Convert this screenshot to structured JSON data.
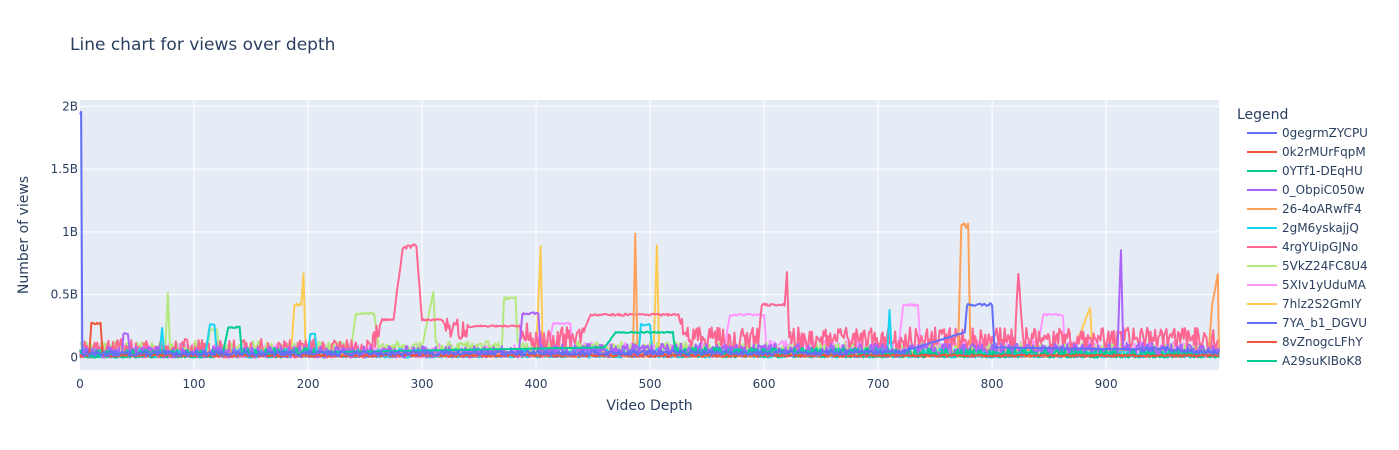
{
  "chart_data": {
    "type": "line",
    "title": "Line chart for views over depth",
    "xlabel": "Video Depth",
    "ylabel": "Number of views",
    "xlim": [
      0,
      999
    ],
    "ylim": [
      -100000000,
      2050000000
    ],
    "x_ticks": [
      0,
      100,
      200,
      300,
      400,
      500,
      600,
      700,
      800,
      900
    ],
    "x_tick_labels": [
      "0",
      "100",
      "200",
      "300",
      "400",
      "500",
      "600",
      "700",
      "800",
      "900"
    ],
    "y_ticks": [
      0,
      500000000,
      1000000000,
      1500000000,
      2000000000
    ],
    "y_tick_labels": [
      "0",
      "0.5B",
      "1B",
      "1.5B",
      "2B"
    ],
    "grid": true,
    "legend_title": "Legend",
    "legend_position": "right",
    "series": [
      {
        "name": "0gegrmZYCPU",
        "color": "#636efa",
        "baseline": 40000000,
        "noise": 20000000,
        "points": [
          [
            0,
            1960000000
          ],
          [
            1,
            1960000000
          ],
          [
            2,
            30000000
          ],
          [
            720,
            40000000
          ],
          [
            776,
            200000000
          ],
          [
            778,
            420000000
          ],
          [
            800,
            420000000
          ],
          [
            802,
            80000000
          ],
          [
            960,
            60000000
          ],
          [
            999,
            40000000
          ]
        ]
      },
      {
        "name": "0k2rMUrFqpM",
        "color": "#EF553B",
        "baseline": 15000000,
        "noise": 8000000,
        "points": [
          [
            0,
            15000000
          ],
          [
            8,
            20000000
          ],
          [
            10,
            270000000
          ],
          [
            18,
            270000000
          ],
          [
            20,
            15000000
          ],
          [
            999,
            15000000
          ]
        ]
      },
      {
        "name": "0YTf1-DEqHU",
        "color": "#00cc96",
        "baseline": 25000000,
        "noise": 40000000,
        "points": [
          [
            0,
            20000000
          ],
          [
            125,
            20000000
          ],
          [
            130,
            240000000
          ],
          [
            140,
            240000000
          ],
          [
            142,
            30000000
          ],
          [
            460,
            80000000
          ],
          [
            470,
            200000000
          ],
          [
            520,
            200000000
          ],
          [
            522,
            40000000
          ],
          [
            999,
            20000000
          ]
        ]
      },
      {
        "name": "0_ObpiC050w",
        "color": "#ab63fa",
        "baseline": 60000000,
        "noise": 50000000,
        "points": [
          [
            0,
            40000000
          ],
          [
            37,
            40000000
          ],
          [
            38,
            190000000
          ],
          [
            42,
            190000000
          ],
          [
            44,
            40000000
          ],
          [
            385,
            40000000
          ],
          [
            388,
            350000000
          ],
          [
            402,
            350000000
          ],
          [
            404,
            60000000
          ],
          [
            910,
            60000000
          ],
          [
            913,
            860000000
          ],
          [
            915,
            80000000
          ],
          [
            999,
            40000000
          ]
        ]
      },
      {
        "name": "26-4oARwfF4",
        "color": "#FFA15A",
        "baseline": 30000000,
        "noise": 20000000,
        "points": [
          [
            0,
            30000000
          ],
          [
            485,
            30000000
          ],
          [
            487,
            990000000
          ],
          [
            489,
            30000000
          ],
          [
            770,
            30000000
          ],
          [
            773,
            1050000000
          ],
          [
            779,
            1050000000
          ],
          [
            781,
            60000000
          ],
          [
            990,
            60000000
          ],
          [
            993,
            420000000
          ],
          [
            998,
            680000000
          ],
          [
            999,
            40000000
          ]
        ]
      },
      {
        "name": "2gM6yskajjQ",
        "color": "#19d3f3",
        "baseline": 40000000,
        "noise": 40000000,
        "points": [
          [
            0,
            30000000
          ],
          [
            70,
            30000000
          ],
          [
            72,
            240000000
          ],
          [
            74,
            30000000
          ],
          [
            110,
            30000000
          ],
          [
            114,
            260000000
          ],
          [
            118,
            260000000
          ],
          [
            120,
            30000000
          ],
          [
            200,
            30000000
          ],
          [
            202,
            190000000
          ],
          [
            206,
            190000000
          ],
          [
            208,
            30000000
          ],
          [
            490,
            30000000
          ],
          [
            492,
            260000000
          ],
          [
            500,
            260000000
          ],
          [
            502,
            30000000
          ],
          [
            708,
            30000000
          ],
          [
            710,
            380000000
          ],
          [
            712,
            30000000
          ],
          [
            999,
            30000000
          ]
        ]
      },
      {
        "name": "4rgYUipGJNo",
        "color": "#FF6692",
        "baseline": 150000000,
        "noise": 90000000,
        "points": [
          [
            0,
            60000000
          ],
          [
            255,
            60000000
          ],
          [
            265,
            300000000
          ],
          [
            275,
            300000000
          ],
          [
            283,
            880000000
          ],
          [
            295,
            880000000
          ],
          [
            300,
            300000000
          ],
          [
            318,
            300000000
          ],
          [
            322,
            220000000
          ],
          [
            350,
            250000000
          ],
          [
            385,
            250000000
          ],
          [
            400,
            120000000
          ],
          [
            440,
            180000000
          ],
          [
            448,
            340000000
          ],
          [
            525,
            340000000
          ],
          [
            530,
            150000000
          ],
          [
            595,
            150000000
          ],
          [
            598,
            420000000
          ],
          [
            618,
            420000000
          ],
          [
            620,
            680000000
          ],
          [
            622,
            150000000
          ],
          [
            820,
            150000000
          ],
          [
            823,
            680000000
          ],
          [
            827,
            150000000
          ],
          [
            999,
            150000000
          ]
        ]
      },
      {
        "name": "5VkZ24FC8U4",
        "color": "#B6E880",
        "baseline": 60000000,
        "noise": 50000000,
        "points": [
          [
            0,
            80000000
          ],
          [
            75,
            80000000
          ],
          [
            77,
            520000000
          ],
          [
            79,
            80000000
          ],
          [
            112,
            80000000
          ],
          [
            114,
            220000000
          ],
          [
            120,
            220000000
          ],
          [
            122,
            80000000
          ],
          [
            238,
            80000000
          ],
          [
            242,
            350000000
          ],
          [
            258,
            350000000
          ],
          [
            262,
            80000000
          ],
          [
            300,
            80000000
          ],
          [
            310,
            530000000
          ],
          [
            312,
            80000000
          ],
          [
            370,
            80000000
          ],
          [
            372,
            470000000
          ],
          [
            382,
            470000000
          ],
          [
            384,
            80000000
          ],
          [
            999,
            60000000
          ]
        ]
      },
      {
        "name": "5XIv1yUduMA",
        "color": "#FF97FF",
        "baseline": 60000000,
        "noise": 60000000,
        "points": [
          [
            0,
            50000000
          ],
          [
            410,
            50000000
          ],
          [
            415,
            270000000
          ],
          [
            430,
            270000000
          ],
          [
            432,
            60000000
          ],
          [
            565,
            60000000
          ],
          [
            570,
            340000000
          ],
          [
            600,
            340000000
          ],
          [
            602,
            80000000
          ],
          [
            718,
            80000000
          ],
          [
            722,
            420000000
          ],
          [
            735,
            420000000
          ],
          [
            737,
            80000000
          ],
          [
            840,
            80000000
          ],
          [
            845,
            340000000
          ],
          [
            862,
            340000000
          ],
          [
            864,
            80000000
          ],
          [
            999,
            60000000
          ]
        ]
      },
      {
        "name": "7hlz2S2GmIY",
        "color": "#FECB52",
        "baseline": 20000000,
        "noise": 15000000,
        "points": [
          [
            0,
            20000000
          ],
          [
            185,
            20000000
          ],
          [
            188,
            420000000
          ],
          [
            194,
            420000000
          ],
          [
            196,
            660000000
          ],
          [
            198,
            20000000
          ],
          [
            400,
            20000000
          ],
          [
            404,
            880000000
          ],
          [
            406,
            20000000
          ],
          [
            503,
            20000000
          ],
          [
            506,
            880000000
          ],
          [
            508,
            20000000
          ],
          [
            870,
            20000000
          ],
          [
            886,
            400000000
          ],
          [
            888,
            20000000
          ],
          [
            999,
            20000000
          ]
        ]
      },
      {
        "name": "7YA_b1_DGVU",
        "color": "#636efa",
        "baseline": 10000000,
        "noise": 6000000,
        "points": [
          [
            0,
            10000000
          ],
          [
            999,
            10000000
          ]
        ]
      },
      {
        "name": "8vZnogcLFhY",
        "color": "#EF553B",
        "baseline": 8000000,
        "noise": 5000000,
        "points": [
          [
            0,
            8000000
          ],
          [
            999,
            8000000
          ]
        ]
      },
      {
        "name": "A29suKIBoK8",
        "color": "#00cc96",
        "baseline": 12000000,
        "noise": 8000000,
        "points": [
          [
            0,
            12000000
          ],
          [
            999,
            12000000
          ]
        ]
      }
    ]
  }
}
